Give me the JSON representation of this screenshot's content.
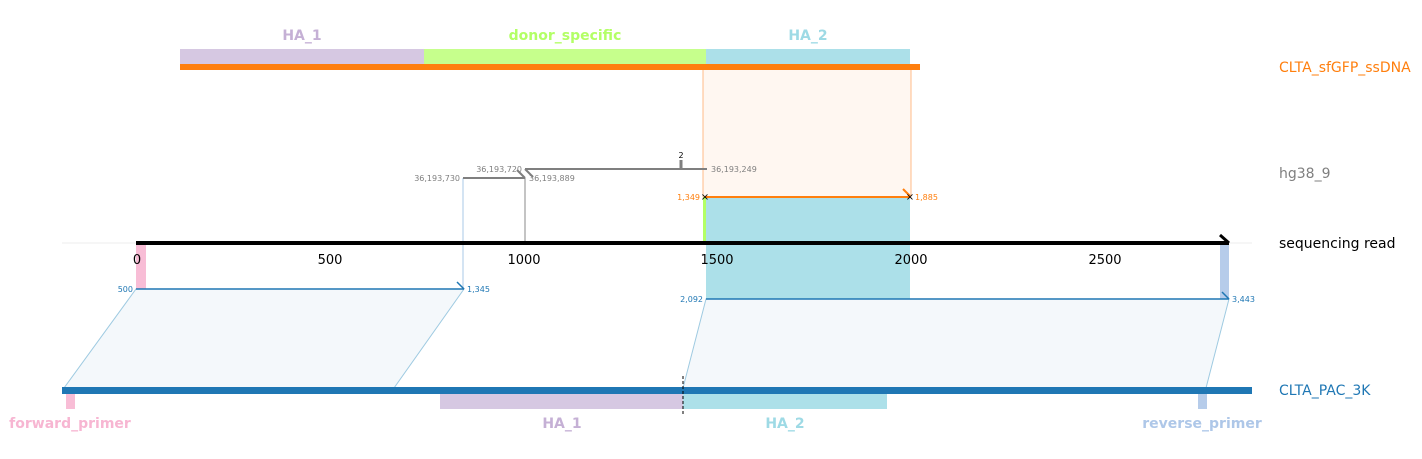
{
  "colors": {
    "donor_track": "#ff7f0e",
    "hg38_track": "#7f7f7f",
    "read_track": "#000000",
    "pac_track": "#1f77b4",
    "HA_1": "#c5b0d5",
    "donor_specific": "#b3ff66",
    "HA_2": "#9edae5",
    "forward_primer": "#f7b6d2",
    "reverse_primer": "#aec7e8"
  },
  "tracks": {
    "donor": "CLTA_sfGFP_ssDNA",
    "hg38": "hg38_9",
    "read": "sequencing read",
    "pac": "CLTA_PAC_3K"
  },
  "donor_features": [
    {
      "name": "HA_1",
      "label": "HA_1",
      "color": "#c5b0d5"
    },
    {
      "name": "donor_specific",
      "label": "donor_specific",
      "color": "#b3ff66"
    },
    {
      "name": "HA_2",
      "label": "HA_2",
      "color": "#9edae5"
    }
  ],
  "pac_features": [
    {
      "name": "forward_primer",
      "label": "forward_primer",
      "color": "#f7b6d2"
    },
    {
      "name": "HA_1",
      "label": "HA_1",
      "color": "#c5b0d5"
    },
    {
      "name": "HA_2",
      "label": "HA_2",
      "color": "#9edae5"
    },
    {
      "name": "reverse_primer",
      "label": "reverse_primer",
      "color": "#aec7e8"
    }
  ],
  "read_axis": {
    "ticks": [
      "0",
      "500",
      "1000",
      "1500",
      "2000",
      "2500"
    ]
  },
  "alignments": {
    "hg38": {
      "labels": [
        "36,193,730",
        "36,193,720",
        "36,193,889",
        "36,193,249"
      ],
      "count_label": "2"
    },
    "donor": {
      "start_label": "1,349",
      "end_label": "1,885"
    },
    "pac_left": {
      "start_label": "500",
      "end_label": "1,345"
    },
    "pac_right": {
      "start_label": "2,092",
      "end_label": "3,443"
    }
  }
}
